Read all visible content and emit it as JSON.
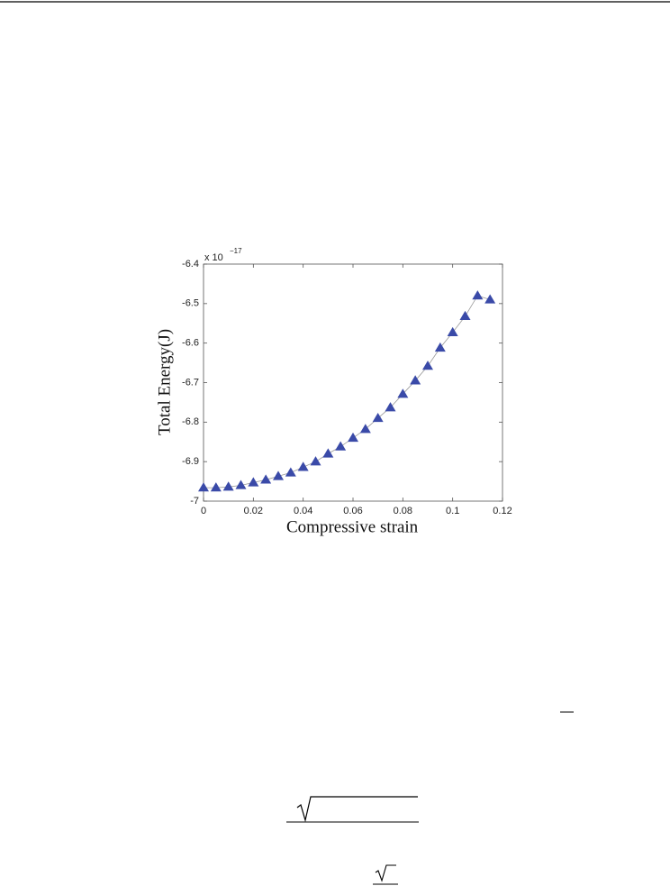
{
  "chart_data": {
    "type": "line",
    "xlabel": "Compressive strain",
    "ylabel": "Total Energy(J)",
    "multiplier": {
      "base": "x 10",
      "exponent": "−17"
    },
    "x": [
      0,
      0.005,
      0.01,
      0.015,
      0.02,
      0.025,
      0.03,
      0.035,
      0.04,
      0.045,
      0.05,
      0.055,
      0.06,
      0.065,
      0.07,
      0.075,
      0.08,
      0.085,
      0.09,
      0.095,
      0.1,
      0.105,
      0.11,
      0.115
    ],
    "series": [
      {
        "color": "#3a4aa8",
        "values": [
          -6.966,
          -6.966,
          -6.964,
          -6.96,
          -6.953,
          -6.946,
          -6.937,
          -6.928,
          -6.914,
          -6.9,
          -6.88,
          -6.862,
          -6.84,
          -6.818,
          -6.79,
          -6.763,
          -6.729,
          -6.695,
          -6.658,
          -6.612,
          -6.573,
          -6.532,
          -6.48,
          -6.49
        ]
      }
    ],
    "xlim": [
      0,
      0.12
    ],
    "xticks": [
      0,
      0.02,
      0.04,
      0.06,
      0.08,
      0.1,
      0.12
    ],
    "ylim": [
      -7,
      -6.4
    ],
    "yticks": [
      -6.4,
      -6.5,
      -6.6,
      -6.7,
      -6.8,
      -6.9,
      -7
    ],
    "line_color": "#999999",
    "marker": "triangle"
  }
}
